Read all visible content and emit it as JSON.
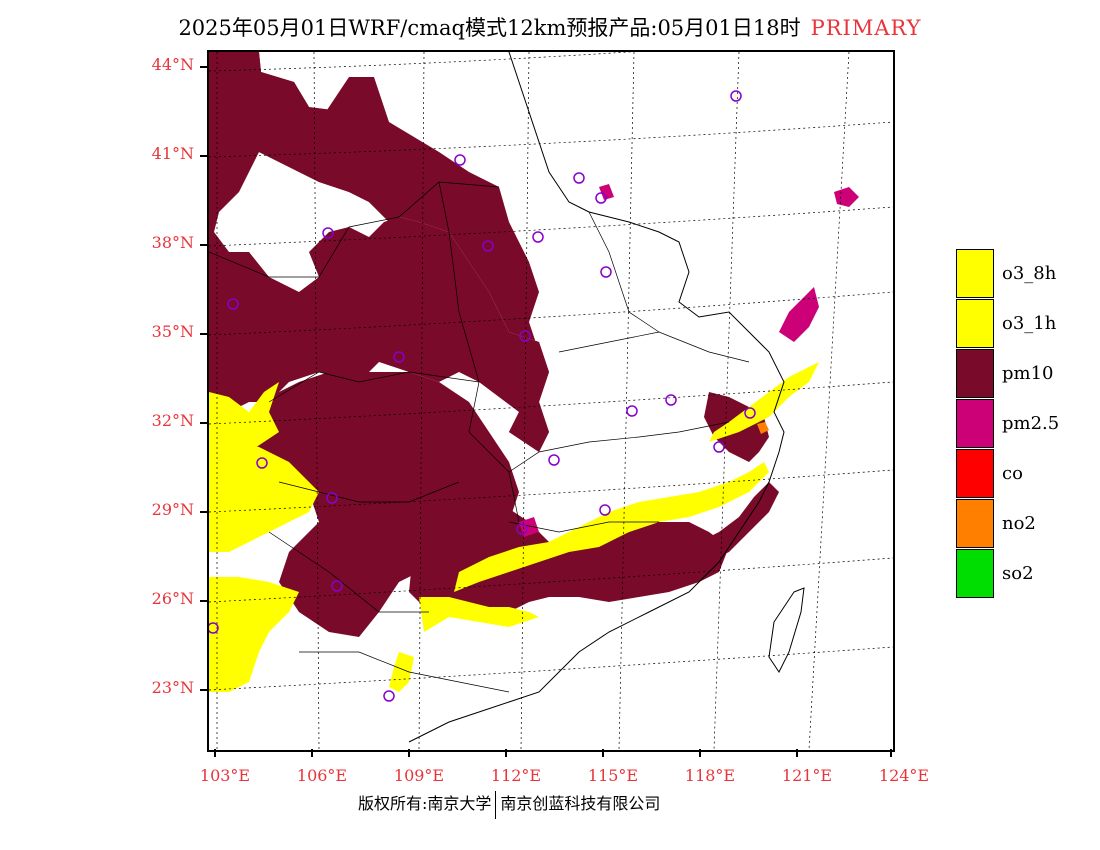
{
  "title": {
    "main": "2025年05月01日WRF/cmaq模式12km预报产品:05月01日18时",
    "tag": "PRIMARY"
  },
  "axes": {
    "lat_labels": [
      "44°N",
      "41°N",
      "38°N",
      "35°N",
      "32°N",
      "29°N",
      "26°N",
      "23°N"
    ],
    "lon_labels": [
      "103°E",
      "106°E",
      "109°E",
      "112°E",
      "115°E",
      "118°E",
      "121°E",
      "124°E"
    ]
  },
  "legend": [
    {
      "label": "o3_8h",
      "color": "#ffff00"
    },
    {
      "label": "o3_1h",
      "color": "#ffff00"
    },
    {
      "label": "pm10",
      "color": "#7a0a2a"
    },
    {
      "label": "pm2.5",
      "color": "#cc0077"
    },
    {
      "label": "co",
      "color": "#ff0000"
    },
    {
      "label": "no2",
      "color": "#ff8000"
    },
    {
      "label": "so2",
      "color": "#00dd00"
    }
  ],
  "footer": {
    "left": "版权所有:南京大学",
    "right": "南京创蓝科技有限公司"
  },
  "colors": {
    "pm10": "#7a0a2a",
    "o3": "#ffff00",
    "pm25": "#cc0077",
    "label_red": "#e8343a",
    "station": "#8800cc"
  }
}
